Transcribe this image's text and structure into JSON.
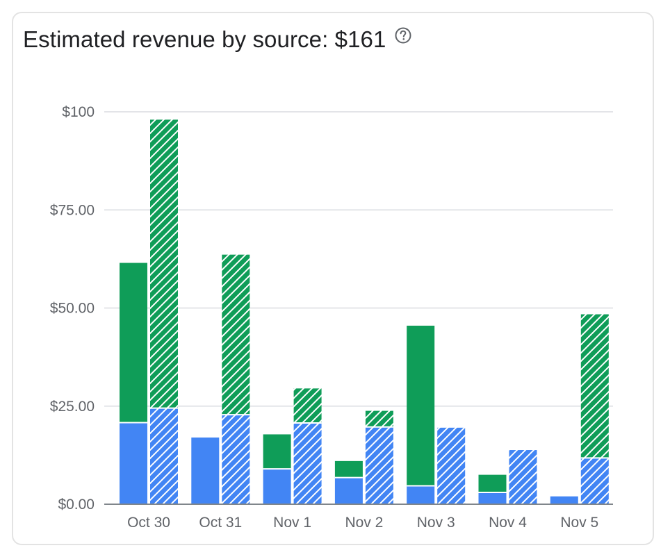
{
  "card": {
    "title": "Estimated revenue by source: $161",
    "help_icon": "help-circle-icon"
  },
  "colors": {
    "green": "#0f9d58",
    "blue": "#4285f4",
    "grid": "#dadce0",
    "axis": "#80868b"
  },
  "chart_data": {
    "type": "bar",
    "stacked": true,
    "grouped": true,
    "title": "Estimated revenue by source: $161",
    "categories": [
      "Oct 30",
      "Oct 31",
      "Nov 1",
      "Nov 2",
      "Nov 3",
      "Nov 4",
      "Nov 5"
    ],
    "ylim": [
      0,
      100
    ],
    "yticks": [
      0,
      25,
      50,
      75,
      100
    ],
    "ytick_labels": [
      "$0.00",
      "$25.00",
      "$50.00",
      "$75.00",
      "$100"
    ],
    "grid": true,
    "bars": [
      {
        "pattern": "solid",
        "series": [
          {
            "color": "blue",
            "values": [
              20.8,
              17,
              9,
              6.8,
              4.7,
              3,
              2
            ]
          },
          {
            "color": "green",
            "values": [
              40.7,
              0,
              8.8,
              4.2,
              40.8,
              4.5,
              0
            ]
          }
        ]
      },
      {
        "pattern": "hatched",
        "series": [
          {
            "color": "blue",
            "values": [
              24.5,
              22.8,
              20.7,
              19.7,
              19.5,
              13.8,
              11.8
            ]
          },
          {
            "color": "green",
            "values": [
              73.5,
              40.8,
              8.8,
              4.1,
              0,
              0,
              36.6
            ]
          }
        ]
      }
    ]
  }
}
